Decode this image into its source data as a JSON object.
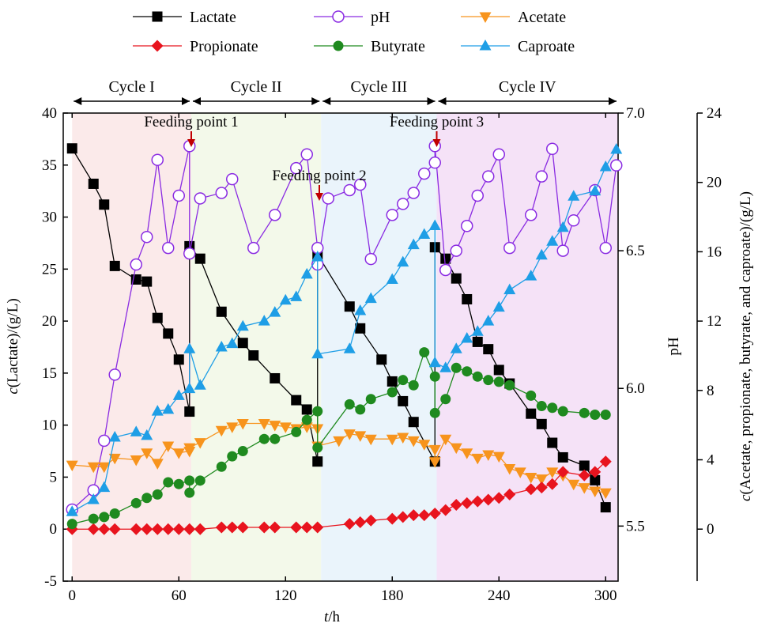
{
  "chart_data": {
    "type": "line",
    "xlabel_prefix": "t",
    "xlabel_suffix": "/h",
    "x_ticks": [
      "0",
      "60",
      "120",
      "180",
      "240",
      "300"
    ],
    "xlim": [
      -5,
      307
    ],
    "left_axis": {
      "label_prefix": "c",
      "label_suffix": "(Lactate)/(g/L)",
      "ylim": [
        -5,
        40
      ],
      "ticks": [
        "-5",
        "0",
        "5",
        "10",
        "15",
        "20",
        "25",
        "30",
        "35",
        "40"
      ]
    },
    "ph_axis": {
      "label": "pH",
      "ylim": [
        5.3,
        7.0
      ],
      "ticks": [
        "5.5",
        "6.0",
        "6.5",
        "7.0"
      ]
    },
    "right_axis": {
      "label_prefix": "c",
      "label_suffix": "(Acetate, propionate, butyrate, and caproate)/(g/L)",
      "ylim": [
        -3,
        24
      ],
      "ticks": [
        "0",
        "4",
        "8",
        "12",
        "16",
        "20",
        "24"
      ]
    },
    "legend_position": "top",
    "cycles": [
      {
        "label": "Cycle I",
        "start": 0,
        "end": 67,
        "color": "#fbeaea"
      },
      {
        "label": "Cycle II",
        "start": 67,
        "end": 140,
        "color": "#f3f9ea"
      },
      {
        "label": "Cycle III",
        "start": 140,
        "end": 205,
        "color": "#eaf4fb"
      },
      {
        "label": "Cycle IV",
        "start": 205,
        "end": 307,
        "color": "#f5e2f7"
      }
    ],
    "annotations": [
      {
        "text": "Feeding point 1",
        "x": 67
      },
      {
        "text": "Feeding point 2",
        "x": 139
      },
      {
        "text": "Feeding point 3",
        "x": 205
      }
    ],
    "series": [
      {
        "name": "Lactate",
        "axis": "left",
        "color": "#000000",
        "marker": "square",
        "points": [
          [
            0,
            36.6
          ],
          [
            12,
            33.2
          ],
          [
            18,
            31.2
          ],
          [
            24,
            25.3
          ],
          [
            36,
            24.0
          ],
          [
            42,
            23.8
          ],
          [
            48,
            20.3
          ],
          [
            54,
            18.8
          ],
          [
            60,
            16.3
          ],
          [
            66,
            11.3
          ],
          [
            66,
            27.2
          ],
          [
            72,
            26.0
          ],
          [
            84,
            20.9
          ],
          [
            96,
            17.9
          ],
          [
            102,
            16.7
          ],
          [
            114,
            14.5
          ],
          [
            126,
            12.4
          ],
          [
            132,
            11.5
          ],
          [
            138,
            6.5
          ],
          [
            138,
            26.4
          ],
          [
            156,
            21.4
          ],
          [
            162,
            19.3
          ],
          [
            174,
            16.3
          ],
          [
            180,
            14.2
          ],
          [
            186,
            12.3
          ],
          [
            192,
            10.3
          ],
          [
            204,
            6.5
          ],
          [
            204,
            27.1
          ],
          [
            210,
            26.0
          ],
          [
            216,
            24.1
          ],
          [
            222,
            22.1
          ],
          [
            228,
            18.0
          ],
          [
            234,
            17.3
          ],
          [
            240,
            15.3
          ],
          [
            246,
            14.0
          ],
          [
            258,
            11.1
          ],
          [
            264,
            10.1
          ],
          [
            270,
            8.3
          ],
          [
            276,
            6.9
          ],
          [
            288,
            6.1
          ],
          [
            294,
            4.7
          ],
          [
            300,
            2.1
          ]
        ]
      },
      {
        "name": "pH",
        "axis": "ph",
        "color": "#8a2be2",
        "marker": "circle-open",
        "points": [
          [
            0,
            5.56
          ],
          [
            12,
            5.63
          ],
          [
            18,
            5.81
          ],
          [
            24,
            6.05
          ],
          [
            36,
            6.45
          ],
          [
            42,
            6.55
          ],
          [
            48,
            6.83
          ],
          [
            54,
            6.51
          ],
          [
            60,
            6.7
          ],
          [
            66,
            6.88
          ],
          [
            66,
            6.49
          ],
          [
            72,
            6.69
          ],
          [
            84,
            6.71
          ],
          [
            90,
            6.76
          ],
          [
            102,
            6.51
          ],
          [
            114,
            6.63
          ],
          [
            126,
            6.8
          ],
          [
            132,
            6.85
          ],
          [
            138,
            6.51
          ],
          [
            138,
            6.45
          ],
          [
            144,
            6.69
          ],
          [
            156,
            6.72
          ],
          [
            162,
            6.74
          ],
          [
            168,
            6.47
          ],
          [
            180,
            6.63
          ],
          [
            186,
            6.67
          ],
          [
            192,
            6.71
          ],
          [
            198,
            6.78
          ],
          [
            204,
            6.82
          ],
          [
            204,
            6.88
          ],
          [
            210,
            6.43
          ],
          [
            216,
            6.5
          ],
          [
            222,
            6.59
          ],
          [
            228,
            6.7
          ],
          [
            234,
            6.77
          ],
          [
            240,
            6.85
          ],
          [
            246,
            6.51
          ],
          [
            258,
            6.63
          ],
          [
            264,
            6.77
          ],
          [
            270,
            6.87
          ],
          [
            276,
            6.5
          ],
          [
            282,
            6.61
          ],
          [
            294,
            6.72
          ],
          [
            300,
            6.51
          ],
          [
            306,
            6.81
          ]
        ]
      },
      {
        "name": "Acetate",
        "axis": "right",
        "color": "#f7941d",
        "marker": "triangle-down",
        "points": [
          [
            0,
            3.7
          ],
          [
            12,
            3.6
          ],
          [
            18,
            3.6
          ],
          [
            24,
            4.1
          ],
          [
            36,
            4.0
          ],
          [
            42,
            4.4
          ],
          [
            48,
            3.8
          ],
          [
            54,
            4.8
          ],
          [
            60,
            4.4
          ],
          [
            66,
            4.5
          ],
          [
            66,
            4.7
          ],
          [
            72,
            5.0
          ],
          [
            84,
            5.7
          ],
          [
            90,
            5.9
          ],
          [
            96,
            6.1
          ],
          [
            108,
            6.1
          ],
          [
            114,
            6.0
          ],
          [
            120,
            5.9
          ],
          [
            126,
            5.8
          ],
          [
            132,
            5.9
          ],
          [
            138,
            5.8
          ],
          [
            138,
            4.8
          ],
          [
            150,
            5.1
          ],
          [
            156,
            5.5
          ],
          [
            162,
            5.4
          ],
          [
            168,
            5.2
          ],
          [
            180,
            5.2
          ],
          [
            186,
            5.3
          ],
          [
            192,
            5.1
          ],
          [
            198,
            4.9
          ],
          [
            204,
            4.6
          ],
          [
            204,
            3.9
          ],
          [
            210,
            5.2
          ],
          [
            216,
            4.7
          ],
          [
            222,
            4.4
          ],
          [
            228,
            4.1
          ],
          [
            234,
            4.3
          ],
          [
            240,
            4.2
          ],
          [
            246,
            3.5
          ],
          [
            252,
            3.3
          ],
          [
            258,
            3.0
          ],
          [
            264,
            2.9
          ],
          [
            270,
            3.3
          ],
          [
            276,
            3.1
          ],
          [
            282,
            2.6
          ],
          [
            288,
            2.4
          ],
          [
            294,
            2.2
          ],
          [
            300,
            2.1
          ]
        ]
      },
      {
        "name": "Propionate",
        "axis": "right",
        "color": "#e8141e",
        "marker": "diamond",
        "points": [
          [
            0,
            0.0
          ],
          [
            12,
            0.0
          ],
          [
            18,
            0.0
          ],
          [
            24,
            0.0
          ],
          [
            36,
            0.0
          ],
          [
            42,
            0.0
          ],
          [
            48,
            0.0
          ],
          [
            54,
            0.0
          ],
          [
            60,
            0.0
          ],
          [
            66,
            0.0
          ],
          [
            72,
            0.0
          ],
          [
            84,
            0.1
          ],
          [
            90,
            0.1
          ],
          [
            96,
            0.1
          ],
          [
            108,
            0.1
          ],
          [
            114,
            0.1
          ],
          [
            126,
            0.1
          ],
          [
            132,
            0.1
          ],
          [
            138,
            0.1
          ],
          [
            156,
            0.3
          ],
          [
            162,
            0.4
          ],
          [
            168,
            0.5
          ],
          [
            180,
            0.6
          ],
          [
            186,
            0.7
          ],
          [
            192,
            0.8
          ],
          [
            198,
            0.8
          ],
          [
            204,
            0.9
          ],
          [
            210,
            1.1
          ],
          [
            216,
            1.4
          ],
          [
            222,
            1.5
          ],
          [
            228,
            1.6
          ],
          [
            234,
            1.7
          ],
          [
            240,
            1.8
          ],
          [
            246,
            2.0
          ],
          [
            258,
            2.3
          ],
          [
            264,
            2.4
          ],
          [
            270,
            2.6
          ],
          [
            276,
            3.3
          ],
          [
            288,
            3.1
          ],
          [
            294,
            3.3
          ],
          [
            300,
            3.9
          ]
        ]
      },
      {
        "name": "Butyrate",
        "axis": "right",
        "color": "#1f8a1f",
        "marker": "circle",
        "points": [
          [
            0,
            0.3
          ],
          [
            12,
            0.6
          ],
          [
            18,
            0.7
          ],
          [
            24,
            0.9
          ],
          [
            36,
            1.5
          ],
          [
            42,
            1.8
          ],
          [
            48,
            2.0
          ],
          [
            54,
            2.7
          ],
          [
            60,
            2.6
          ],
          [
            66,
            2.8
          ],
          [
            66,
            2.1
          ],
          [
            72,
            2.8
          ],
          [
            84,
            3.6
          ],
          [
            90,
            4.2
          ],
          [
            96,
            4.5
          ],
          [
            108,
            5.2
          ],
          [
            114,
            5.2
          ],
          [
            126,
            5.6
          ],
          [
            132,
            6.3
          ],
          [
            138,
            6.8
          ],
          [
            138,
            4.7
          ],
          [
            156,
            7.2
          ],
          [
            162,
            6.9
          ],
          [
            168,
            7.5
          ],
          [
            180,
            7.9
          ],
          [
            186,
            8.6
          ],
          [
            192,
            8.3
          ],
          [
            198,
            10.2
          ],
          [
            204,
            8.8
          ],
          [
            204,
            6.7
          ],
          [
            210,
            7.5
          ],
          [
            216,
            9.3
          ],
          [
            222,
            9.1
          ],
          [
            228,
            8.8
          ],
          [
            234,
            8.6
          ],
          [
            240,
            8.5
          ],
          [
            246,
            8.3
          ],
          [
            258,
            7.7
          ],
          [
            264,
            7.1
          ],
          [
            270,
            7.0
          ],
          [
            276,
            6.8
          ],
          [
            288,
            6.7
          ],
          [
            294,
            6.6
          ],
          [
            300,
            6.6
          ]
        ]
      },
      {
        "name": "Caproate",
        "axis": "right",
        "color": "#1e9ee6",
        "marker": "triangle-up",
        "points": [
          [
            0,
            1.0
          ],
          [
            12,
            1.7
          ],
          [
            18,
            2.4
          ],
          [
            24,
            5.3
          ],
          [
            36,
            5.6
          ],
          [
            42,
            5.4
          ],
          [
            48,
            6.8
          ],
          [
            54,
            6.9
          ],
          [
            60,
            7.7
          ],
          [
            66,
            8.1
          ],
          [
            66,
            10.4
          ],
          [
            72,
            8.3
          ],
          [
            84,
            10.5
          ],
          [
            90,
            10.7
          ],
          [
            96,
            11.7
          ],
          [
            108,
            12.0
          ],
          [
            114,
            12.5
          ],
          [
            120,
            13.2
          ],
          [
            126,
            13.4
          ],
          [
            132,
            14.7
          ],
          [
            138,
            15.7
          ],
          [
            138,
            10.1
          ],
          [
            156,
            10.4
          ],
          [
            162,
            12.6
          ],
          [
            168,
            13.3
          ],
          [
            180,
            14.4
          ],
          [
            186,
            15.4
          ],
          [
            192,
            16.4
          ],
          [
            198,
            17.0
          ],
          [
            204,
            17.5
          ],
          [
            204,
            9.6
          ],
          [
            210,
            9.3
          ],
          [
            216,
            10.4
          ],
          [
            222,
            11.0
          ],
          [
            228,
            11.4
          ],
          [
            234,
            12.0
          ],
          [
            240,
            12.8
          ],
          [
            246,
            13.8
          ],
          [
            258,
            14.6
          ],
          [
            264,
            15.8
          ],
          [
            270,
            16.6
          ],
          [
            276,
            17.4
          ],
          [
            282,
            19.2
          ],
          [
            294,
            19.5
          ],
          [
            300,
            20.9
          ],
          [
            306,
            21.9
          ]
        ]
      }
    ]
  }
}
